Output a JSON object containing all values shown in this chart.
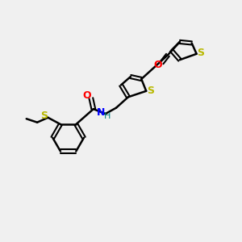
{
  "background_color": "#f0f0f0",
  "bond_color": "#000000",
  "atom_colors": {
    "S": "#b8b800",
    "O": "#ff0000",
    "N": "#0000ff",
    "H": "#008080",
    "C": "#000000"
  },
  "figsize": [
    3.0,
    3.0
  ],
  "dpi": 100
}
